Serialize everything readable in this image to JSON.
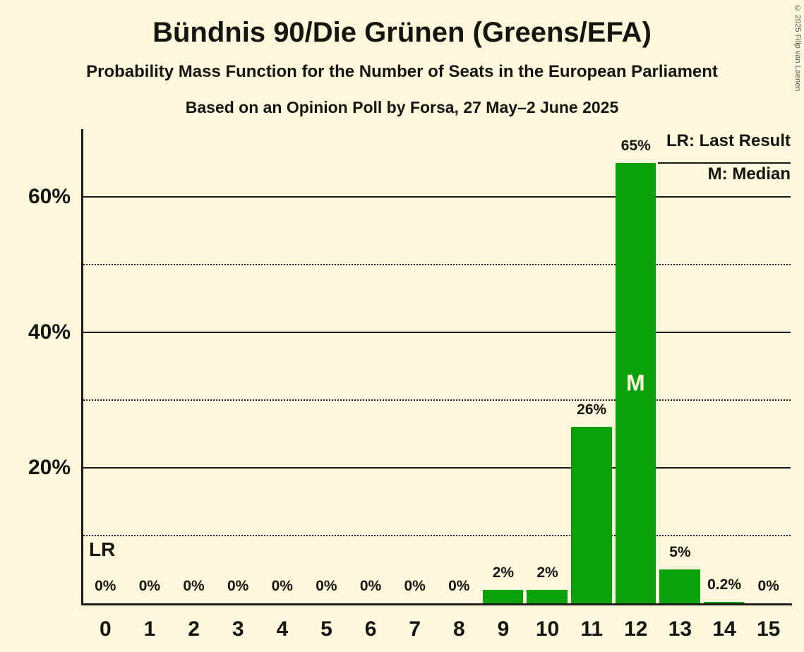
{
  "header": {
    "title": "Bündnis 90/Die Grünen (Greens/EFA)",
    "subtitle": "Probability Mass Function for the Number of Seats in the European Parliament",
    "poll_line": "Based on an Opinion Poll by Forsa, 27 May–2 June 2025"
  },
  "copyright": "© 2025 Filip van Laenen",
  "legend": {
    "lr_label": "LR: Last Result",
    "m_label": "M: Median"
  },
  "colors": {
    "background": "#FFF8DC",
    "bar": "#0AA00A",
    "text": "#15150F",
    "median_text": "#FFF8DC",
    "line": "#1c1c16"
  },
  "chart_data": {
    "type": "bar",
    "title": "Probability Mass Function for the Number of Seats in the European Parliament",
    "categories": [
      "0",
      "1",
      "2",
      "3",
      "4",
      "5",
      "6",
      "7",
      "8",
      "9",
      "10",
      "11",
      "12",
      "13",
      "14",
      "15"
    ],
    "values": [
      0,
      0,
      0,
      0,
      0,
      0,
      0,
      0,
      0,
      2,
      2,
      26,
      65,
      5,
      0.2,
      0
    ],
    "value_labels": [
      "0%",
      "0%",
      "0%",
      "0%",
      "0%",
      "0%",
      "0%",
      "0%",
      "0%",
      "2%",
      "2%",
      "26%",
      "65%",
      "5%",
      "0.2%",
      "0%"
    ],
    "ylim": [
      0,
      70
    ],
    "yticks": [
      {
        "value": 20,
        "label": "20%"
      },
      {
        "value": 40,
        "label": "40%"
      },
      {
        "value": 60,
        "label": "60%"
      }
    ],
    "solid_gridlines": [
      20,
      40,
      60
    ],
    "dotted_gridlines": [
      10,
      30,
      50
    ],
    "median": {
      "seat_index": 12,
      "marker": "M"
    },
    "last_result": {
      "label": "LR",
      "line_percent": 10
    },
    "median_top_line": {
      "percent": 65,
      "from_slot": 13
    },
    "legend_position": "top-right",
    "grid": "horizontal-only"
  }
}
